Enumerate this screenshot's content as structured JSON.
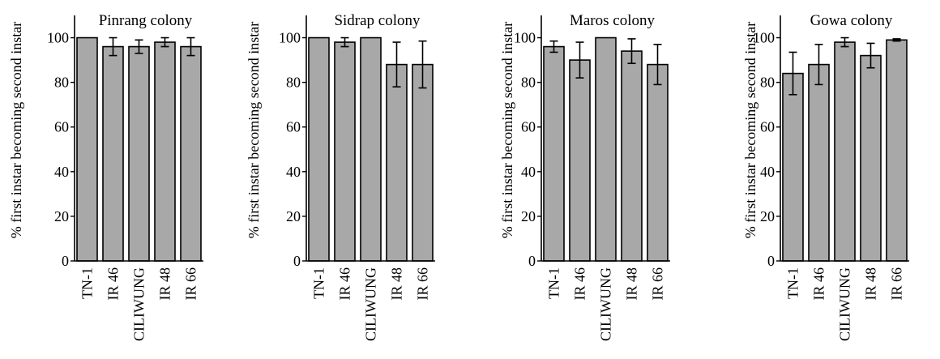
{
  "figure": {
    "bar_color": "#a8a8a8",
    "edge_color": "#000000"
  },
  "chart_data": [
    {
      "type": "bar",
      "title": "Pinrang colony",
      "xlabel": "",
      "ylabel": "% first instar becoming second instar",
      "ylim": [
        0,
        110
      ],
      "yticks": [
        0,
        20,
        40,
        60,
        80,
        100
      ],
      "grid": false,
      "categories": [
        "TN-1",
        "IR 46",
        "CILIWUNG",
        "IR 48",
        "IR 66"
      ],
      "values": [
        100,
        96,
        96,
        98,
        96
      ],
      "error": [
        0,
        4,
        3,
        2,
        4
      ]
    },
    {
      "type": "bar",
      "title": "Sidrap colony",
      "xlabel": "",
      "ylabel": "% first instar becoming second instar",
      "ylim": [
        0,
        110
      ],
      "yticks": [
        0,
        20,
        40,
        60,
        80,
        100
      ],
      "grid": false,
      "categories": [
        "TN-1",
        "IR 46",
        "CILIWUNG",
        "IR 48",
        "IR 66"
      ],
      "values": [
        100,
        98,
        100,
        88,
        88
      ],
      "error": [
        0,
        2,
        0,
        10,
        10.5
      ]
    },
    {
      "type": "bar",
      "title": "Maros colony",
      "xlabel": "",
      "ylabel": "% first instar becoming second instar",
      "ylim": [
        0,
        110
      ],
      "yticks": [
        0,
        20,
        40,
        60,
        80,
        100
      ],
      "grid": false,
      "categories": [
        "TN-1",
        "IR 46",
        "CILIWUNG",
        "IR 48",
        "IR 66"
      ],
      "values": [
        96,
        90,
        100,
        94,
        88
      ],
      "error": [
        2.5,
        8,
        0,
        5.5,
        9
      ]
    },
    {
      "type": "bar",
      "title": "Gowa colony",
      "xlabel": "",
      "ylabel": "% first instar becoming second instar",
      "ylim": [
        0,
        110
      ],
      "yticks": [
        0,
        20,
        40,
        60,
        80,
        100
      ],
      "grid": false,
      "categories": [
        "TN-1",
        "IR 46",
        "CILIWUNG",
        "IR 48",
        "IR 66"
      ],
      "values": [
        84,
        88,
        98,
        92,
        99
      ],
      "error": [
        9.5,
        9,
        2,
        5.5,
        0.5
      ]
    }
  ]
}
